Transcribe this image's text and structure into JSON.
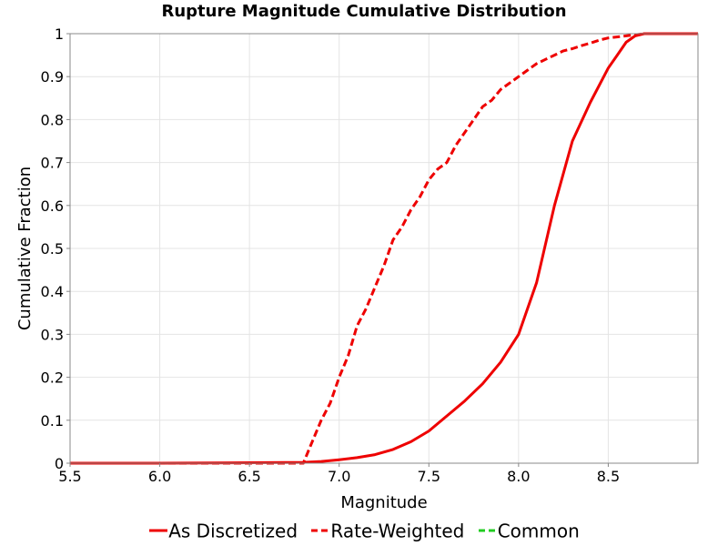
{
  "chart_data": {
    "type": "line",
    "title": "Rupture Magnitude Cumulative Distribution",
    "xlabel": "Magnitude",
    "ylabel": "Cumulative Fraction",
    "xlim": [
      5.5,
      9.0
    ],
    "ylim": [
      0,
      1
    ],
    "x_ticks": [
      "5.5",
      "6.0",
      "6.5",
      "7.0",
      "7.5",
      "8.0",
      "8.5"
    ],
    "y_ticks": [
      "0",
      "0.1",
      "0.2",
      "0.3",
      "0.4",
      "0.5",
      "0.6",
      "0.7",
      "0.8",
      "0.9",
      "1"
    ],
    "grid": true,
    "legend_position": "bottom",
    "series": [
      {
        "name": "As Discretized",
        "style": "solid",
        "color": "#ee0000",
        "x": [
          5.5,
          6.0,
          6.5,
          6.8,
          6.9,
          7.0,
          7.1,
          7.2,
          7.3,
          7.4,
          7.5,
          7.6,
          7.7,
          7.8,
          7.9,
          8.0,
          8.1,
          8.2,
          8.3,
          8.4,
          8.5,
          8.55,
          8.6,
          8.65,
          8.7,
          9.0
        ],
        "y": [
          0.0,
          0.0,
          0.001,
          0.002,
          0.004,
          0.008,
          0.013,
          0.02,
          0.032,
          0.05,
          0.075,
          0.11,
          0.145,
          0.185,
          0.235,
          0.3,
          0.42,
          0.6,
          0.75,
          0.84,
          0.92,
          0.95,
          0.98,
          0.995,
          1.0,
          1.0
        ]
      },
      {
        "name": "Rate-Weighted",
        "style": "dashed",
        "color": "#ee0000",
        "x": [
          5.5,
          6.8,
          6.85,
          6.9,
          6.95,
          7.0,
          7.05,
          7.1,
          7.15,
          7.2,
          7.25,
          7.3,
          7.35,
          7.4,
          7.45,
          7.5,
          7.55,
          7.6,
          7.65,
          7.7,
          7.75,
          7.8,
          7.85,
          7.9,
          7.95,
          8.0,
          8.05,
          8.1,
          8.15,
          8.2,
          8.25,
          8.3,
          8.35,
          8.4,
          8.45,
          8.5,
          8.6,
          8.7,
          9.0
        ],
        "y": [
          0.0,
          0.0,
          0.05,
          0.1,
          0.14,
          0.2,
          0.25,
          0.32,
          0.36,
          0.41,
          0.46,
          0.52,
          0.55,
          0.59,
          0.62,
          0.66,
          0.685,
          0.7,
          0.74,
          0.77,
          0.8,
          0.83,
          0.845,
          0.87,
          0.885,
          0.9,
          0.915,
          0.93,
          0.94,
          0.95,
          0.96,
          0.965,
          0.972,
          0.978,
          0.985,
          0.99,
          0.995,
          1.0,
          1.0
        ]
      },
      {
        "name": "Common",
        "style": "dashed",
        "color": "#22cc22",
        "x": [],
        "y": []
      }
    ]
  }
}
